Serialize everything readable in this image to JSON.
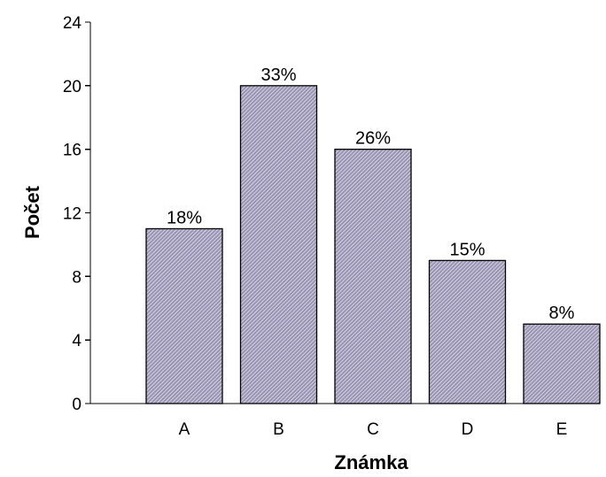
{
  "chart_data": {
    "type": "bar",
    "title": "",
    "xlabel": "Známka",
    "ylabel": "Počet",
    "categories": [
      "A",
      "B",
      "C",
      "D",
      "E"
    ],
    "values": [
      11,
      20,
      16,
      9,
      5
    ],
    "data_labels": [
      "18%",
      "33%",
      "26%",
      "15%",
      "8%"
    ],
    "ylim": [
      0,
      24
    ],
    "yticks": [
      0,
      4,
      8,
      12,
      16,
      20,
      24
    ],
    "grid": false,
    "legend": "none",
    "bar_color": "#9a95b5",
    "bar_hatch_color": "#ffffff",
    "bar_edge_color": "#000000"
  }
}
